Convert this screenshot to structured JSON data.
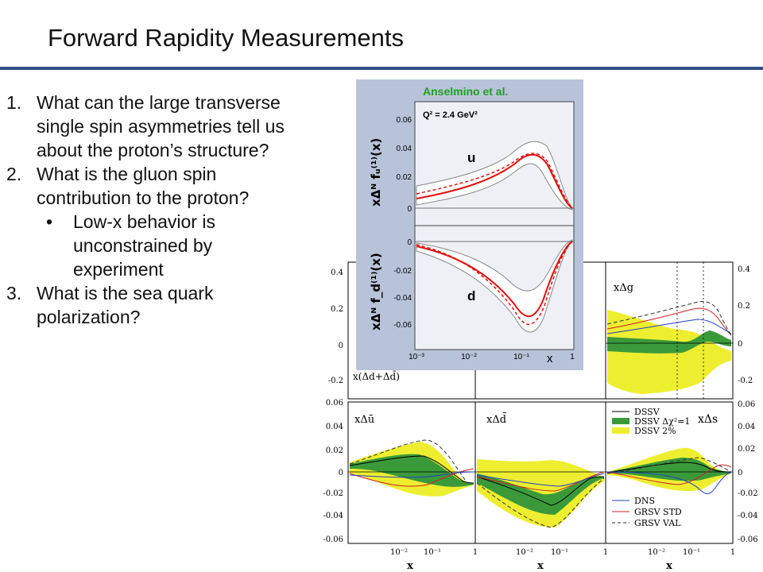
{
  "slide": {
    "title": "Forward Rapidity Measurements",
    "questions": [
      {
        "number": "1.",
        "text": "What can the large transverse single spin asymmetries tell us about the proton’s structure?"
      },
      {
        "number": "2.",
        "text": "What is the gluon spin contribution to the proton?"
      },
      {
        "number": "3.",
        "text": "What is the sea quark polarization?"
      }
    ],
    "sub_bullet": {
      "bullet": "•",
      "text": "Low-x behavior is unconstrained by experiment"
    }
  },
  "inset": {
    "author": "Anselmino et al.",
    "q2_label": "Q² = 2.4 GeV²",
    "upper_ylabel": "xΔᴺ fᵤ⁽¹⁾(x)",
    "lower_ylabel": "xΔᴺ f_d⁽¹⁾(x)",
    "upper_panel_label": "u",
    "lower_panel_label": "d",
    "upper_ticks": [
      "0.06",
      "0.04",
      "0.02",
      "0"
    ],
    "lower_ticks": [
      "0",
      "-0.02",
      "-0.04",
      "-0.06"
    ],
    "x_ticks": [
      "10⁻³",
      "10⁻²",
      "10⁻¹",
      "1"
    ],
    "xlabel": "x"
  },
  "grid": {
    "left_ticks_top": [
      "0.4",
      "0.2",
      "0",
      "-0.2"
    ],
    "left_ticks_bottom": [
      "0.06",
      "0.04",
      "0.02",
      "0",
      "-0.02",
      "-0.04",
      "-0.06"
    ],
    "right_ticks_top": [
      "0.4",
      "0.2",
      "0",
      "-0.2"
    ],
    "right_ticks_bottom": [
      "0.06",
      "0.04",
      "0.02",
      "0",
      "-0.02",
      "-0.04",
      "-0.06"
    ],
    "x_ticks": [
      "10⁻²",
      "10⁻¹",
      "1"
    ],
    "xlabel": "x",
    "panel_labels": {
      "top_left": "x(Δd+Δd̄)",
      "top_right": "xΔg",
      "bottom_left": "xΔū",
      "bottom_middle": "xΔd̄",
      "bottom_right": "xΔs"
    },
    "legend_top": [
      "DSSV",
      "DSSV Δχ²=1",
      "DSSV 2%"
    ],
    "legend_bottom": [
      "DNS",
      "GRSV STD",
      "GRSV VAL"
    ]
  },
  "colors": {
    "title_rule": "#2f4f86",
    "dssv_band_1": "#3a9a3a",
    "dssv_band_2": "#eeee30",
    "grsv": "#d02020",
    "dns": "#2040c0",
    "inset_bg": "#b8c3da",
    "inset_plot": "#eef0f6",
    "author": "#20a020"
  }
}
